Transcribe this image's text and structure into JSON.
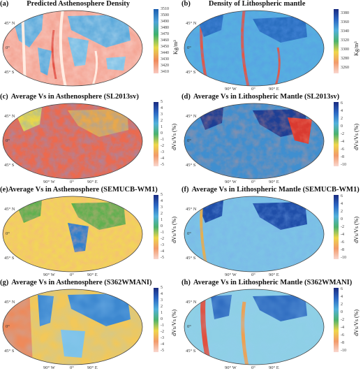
{
  "colors": {
    "ocean_hi": "#d9372c",
    "ocean_lo": "#f7a89a",
    "land": "#8fc9ea",
    "blue": "#1e5fb8",
    "green": "#39a15f",
    "yellow": "#f2d84a"
  },
  "panels": [
    {
      "letter": "(a)",
      "title": "Predicted Asthenosphere Density",
      "unit": "Kg/m³",
      "ticks": [
        "3510",
        "3500",
        "3490",
        "3480",
        "3470",
        "3460",
        "3450",
        "3440",
        "3430",
        "3420",
        "3410"
      ],
      "lat": [
        "45° N",
        "0°",
        "45° S"
      ],
      "lon": []
    },
    {
      "letter": "(b)",
      "title": "Density of Lithospheric mantle",
      "unit": "Kg/m³",
      "ticks": [
        "3380",
        "3360",
        "3340",
        "3320",
        "3300",
        "3280",
        "3260"
      ],
      "lat": [
        "45° N",
        "0°",
        "45° S"
      ],
      "lon": [
        "90° W",
        "0°",
        "90° E"
      ]
    },
    {
      "letter": "(c)",
      "title": "Average Vs in Asthenosphere (SL2013sv)",
      "unit": "dVs/Vs (%)",
      "ticks": [
        "5",
        "4",
        "3",
        "2",
        "1",
        "0",
        "-1",
        "-2",
        "-3",
        "-4",
        "-5"
      ],
      "lat": [
        "45° N",
        "0°",
        "45° S"
      ],
      "lon": [
        "90° W",
        "0°",
        "90° E"
      ]
    },
    {
      "letter": "(d)",
      "title": "Average Vs in Lithospheric Mantle (SL2013sv)",
      "unit": "dVs/Vs (%)",
      "ticks": [
        "6",
        "4",
        "2",
        "0",
        "-2",
        "-4",
        "-6",
        "-8",
        "-10"
      ],
      "lat": [
        "45° N",
        "0°",
        "45° S"
      ],
      "lon": [
        "90° W",
        "0°",
        "90° E"
      ]
    },
    {
      "letter": "(e)",
      "title": "Average Vs in Asthenosphere (SEMUCB-WM1)",
      "unit": "dVs/Vs (%)",
      "ticks": [
        "5",
        "4",
        "3",
        "2",
        "1",
        "0",
        "-1",
        "-2",
        "-3",
        "-4",
        "-5"
      ],
      "lat": [
        "45° N",
        "0°",
        "45° S"
      ],
      "lon": [
        "90° W",
        "0°",
        "90° E"
      ]
    },
    {
      "letter": "(f)",
      "title": "Average Vs in Lithospheric Mantle (SEMUCB-WM1)",
      "unit": "dVs/Vs (%)",
      "ticks": [
        "6",
        "4",
        "2",
        "0",
        "-2",
        "-4",
        "-6",
        "-8",
        "-10"
      ],
      "lat": [
        "45° N",
        "0°",
        "45° S"
      ],
      "lon": [
        "90° W",
        "0°",
        "90° E"
      ]
    },
    {
      "letter": "(g)",
      "title": "Average Vs in Asthenosphere (S362WMANI)",
      "unit": "dVs/Vs (%)",
      "ticks": [
        "5",
        "4",
        "3",
        "2",
        "1",
        "0",
        "-1",
        "-2",
        "-3",
        "-4",
        "-5"
      ],
      "lat": [
        "45° N",
        "0°",
        "45° S"
      ],
      "lon": [
        "90° W",
        "0°",
        "90° E"
      ]
    },
    {
      "letter": "(h)",
      "title": "Average Vs in Lithospheric Mantle (S362WMANI)",
      "unit": "dVs/Vs (%)",
      "ticks": [
        "6",
        "4",
        "2",
        "0",
        "-2",
        "-4",
        "-6",
        "-8",
        "-10"
      ],
      "lat": [
        "45° N",
        "0°",
        "45° S"
      ],
      "lon": [
        "90° W",
        "0°",
        "90° E"
      ]
    }
  ]
}
